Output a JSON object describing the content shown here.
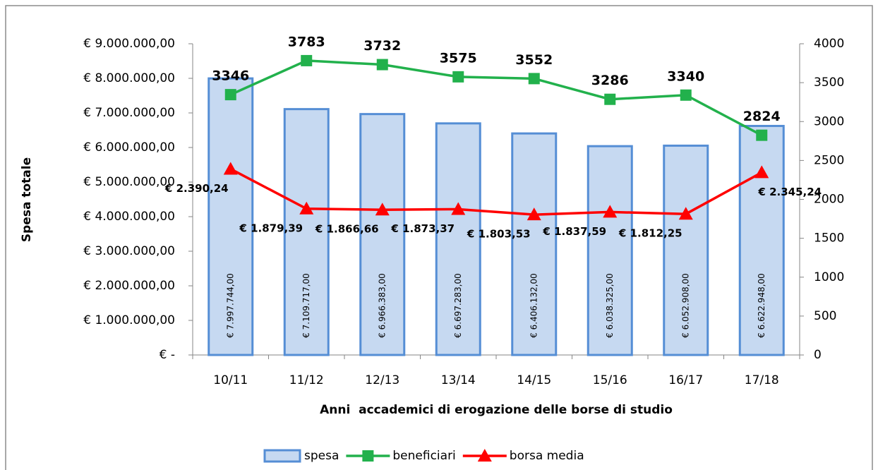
{
  "chart_data": {
    "type": "bar",
    "ylabel": "Spesa totale",
    "xlabel": "Anni  accademici di erogazione delle borse di studio",
    "categories": [
      "10/11",
      "11/12",
      "12/13",
      "13/14",
      "14/15",
      "15/16",
      "16/17",
      "17/18"
    ],
    "ylim": [
      0,
      9000000
    ],
    "yticks": [
      {
        "value": 0,
        "label": "€ -"
      },
      {
        "value": 1000000,
        "label": "€ 1.000.000,00"
      },
      {
        "value": 2000000,
        "label": "€ 2.000.000,00"
      },
      {
        "value": 3000000,
        "label": "€ 3.000.000,00"
      },
      {
        "value": 4000000,
        "label": "€ 4.000.000,00"
      },
      {
        "value": 5000000,
        "label": "€ 5.000.000,00"
      },
      {
        "value": 6000000,
        "label": "€ 6.000.000,00"
      },
      {
        "value": 7000000,
        "label": "€ 7.000.000,00"
      },
      {
        "value": 8000000,
        "label": "€ 8.000.000,00"
      },
      {
        "value": 9000000,
        "label": "€ 9.000.000,00"
      }
    ],
    "y2lim": [
      0,
      4000
    ],
    "y2ticks": [
      0,
      500,
      1000,
      1500,
      2000,
      2500,
      3000,
      3500,
      4000
    ],
    "grid": false,
    "legend": "bottom",
    "series": [
      {
        "name": "spesa",
        "type": "bar",
        "color": "#c6d9f1",
        "edge": "#558ed5",
        "values": [
          7997744,
          7109717,
          6966383,
          6697283,
          6406132,
          6038325,
          6052908,
          6622948
        ],
        "value_labels": [
          "€ 7.997.744,00",
          "€ 7.109.717,00",
          "€ 6.966.383,00",
          "€ 6.697.283,00",
          "€ 6.406.132,00",
          "€ 6.038.325,00",
          "€ 6.052.908,00",
          "€ 6.622.948,00"
        ]
      },
      {
        "name": "beneficiari",
        "type": "line",
        "axis": "y2",
        "color": "#22b14c",
        "marker": "square",
        "values": [
          3346,
          3783,
          3732,
          3575,
          3552,
          3286,
          3340,
          2824
        ]
      },
      {
        "name": "borsa media",
        "type": "line",
        "axis": "y2",
        "color": "#ff0000",
        "marker": "triangle",
        "values": [
          2390.24,
          1879.39,
          1866.66,
          1873.37,
          1803.53,
          1837.59,
          1812.25,
          2345.24
        ],
        "value_labels": [
          "€ 2.390,24",
          "€ 1.879,39",
          "€ 1.866,66",
          "€ 1.873,37",
          "€ 1.803,53",
          "€ 1.837,59",
          "€ 1.812,25",
          "€ 2.345,24"
        ]
      }
    ]
  }
}
